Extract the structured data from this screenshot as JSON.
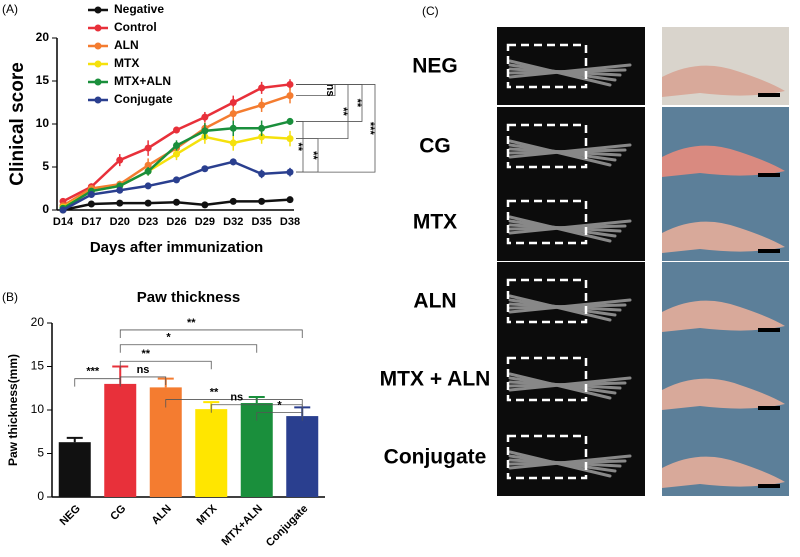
{
  "chart_data": [
    {
      "type": "line",
      "panel_label": "(A)",
      "ylabel": "Clinical score",
      "xlabel": "Days after immunization",
      "categories": [
        "D14",
        "D17",
        "D20",
        "D23",
        "D26",
        "D29",
        "D32",
        "D35",
        "D38"
      ],
      "ylim": [
        0,
        20
      ],
      "yticks": [
        0,
        5,
        10,
        15,
        20
      ],
      "series": [
        {
          "name": "Negative",
          "color": "#111111",
          "values": [
            0,
            0.7,
            0.8,
            0.8,
            0.9,
            0.6,
            1,
            1,
            1.2
          ],
          "errors": [
            0.1,
            0.2,
            0.2,
            0.2,
            0.2,
            0.2,
            0.2,
            0.2,
            0.2
          ]
        },
        {
          "name": "Control",
          "color": "#e8303a",
          "values": [
            1,
            2.7,
            5.8,
            7.2,
            9.3,
            10.8,
            12.5,
            14.2,
            14.6
          ],
          "errors": [
            0.3,
            0.4,
            0.7,
            0.9,
            0.4,
            0.6,
            0.8,
            0.7,
            0.6
          ]
        },
        {
          "name": "ALN",
          "color": "#f47c30",
          "values": [
            0.5,
            2.5,
            3,
            5.2,
            7.2,
            9.5,
            11.2,
            12.2,
            13.3
          ],
          "errors": [
            0.2,
            0.3,
            0.4,
            0.8,
            0.6,
            0.7,
            0.8,
            0.8,
            0.9
          ]
        },
        {
          "name": "MTX",
          "color": "#f5e10c",
          "values": [
            0.3,
            2.2,
            2.8,
            4.5,
            6.5,
            8.5,
            7.8,
            8.5,
            8.3
          ],
          "errors": [
            0.2,
            0.3,
            0.4,
            0.5,
            0.7,
            0.8,
            0.9,
            0.8,
            0.9
          ]
        },
        {
          "name": "MTX+ALN",
          "color": "#1a8f3c",
          "values": [
            0.2,
            2.2,
            2.8,
            4.5,
            7.5,
            9.2,
            9.5,
            9.5,
            10.3
          ],
          "errors": [
            0.2,
            0.3,
            0.4,
            0.5,
            0.6,
            0.9,
            0.9,
            0.9,
            0.4
          ]
        },
        {
          "name": "Conjugate",
          "color": "#2a3f8f",
          "values": [
            0,
            1.8,
            2.3,
            2.8,
            3.5,
            4.8,
            5.6,
            4.2,
            4.4
          ],
          "errors": [
            0.1,
            0.2,
            0.3,
            0.3,
            0.3,
            0.3,
            0.4,
            0.5,
            0.5
          ]
        }
      ],
      "annotations": [
        "ns",
        "**",
        "**",
        "***",
        "**",
        "**"
      ]
    },
    {
      "type": "bar",
      "panel_label": "(B)",
      "title": "Paw thickness",
      "ylabel": "Paw thickness(mm)",
      "categories": [
        "NEG",
        "CG",
        "ALN",
        "MTX",
        "MTX+ALN",
        "Conjugate"
      ],
      "values": [
        6.3,
        13,
        12.6,
        10.1,
        10.8,
        9.3
      ],
      "errors": [
        0.5,
        2,
        1,
        0.8,
        0.7,
        1
      ],
      "colors": [
        "#111111",
        "#e8303a",
        "#f47c30",
        "#ffe600",
        "#1a8f3c",
        "#2a3f8f"
      ],
      "ylim": [
        0,
        20
      ],
      "yticks": [
        0,
        5,
        10,
        15,
        20
      ],
      "annotations": [
        "***",
        "**",
        "*",
        "**",
        "ns",
        "**",
        "ns",
        "*"
      ]
    }
  ],
  "panel_c": {
    "panel_label": "(C)",
    "rows": [
      "NEG",
      "CG",
      "MTX",
      "ALN",
      "MTX + ALN",
      "Conjugate"
    ]
  }
}
